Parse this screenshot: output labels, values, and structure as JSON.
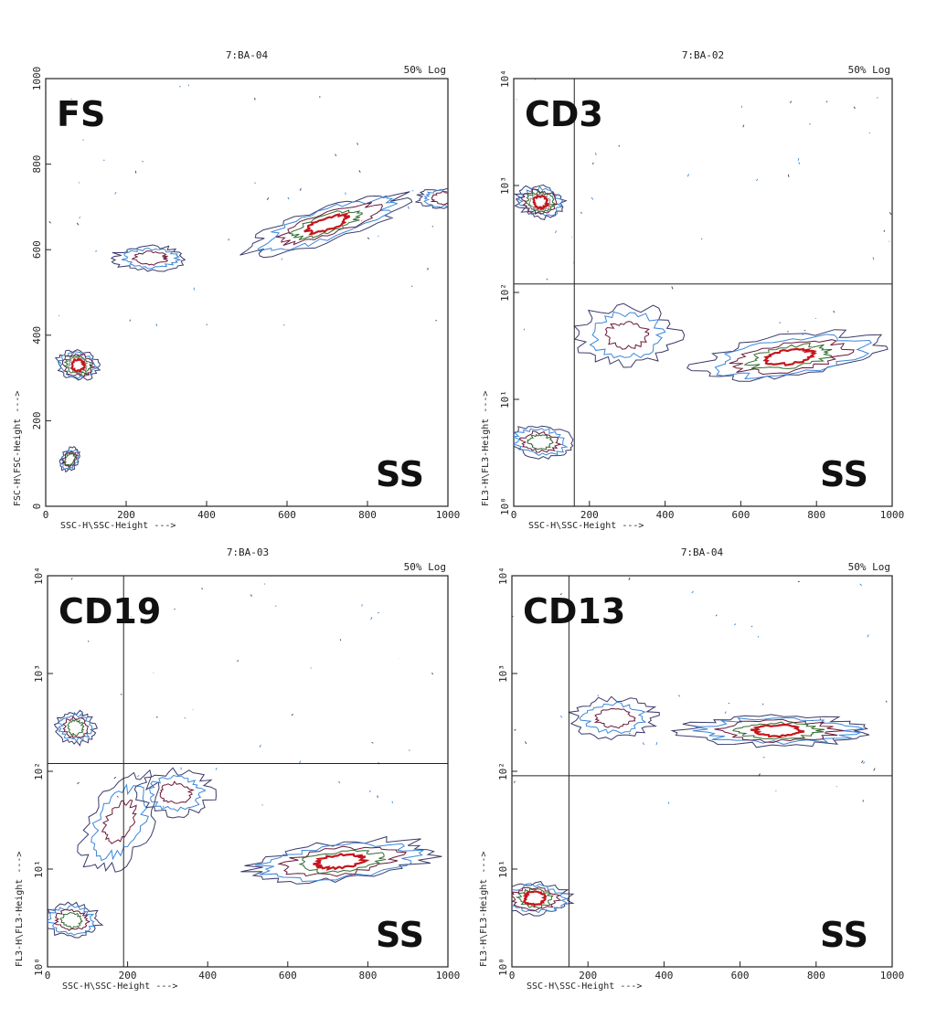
{
  "chart_data": [
    {
      "type": "contour",
      "title": "7:BA-04",
      "scale_note": "50% Log",
      "xlabel": "SSC-H\\SSC-Height --->",
      "ylabel": "FSC-H\\FSC-Height --->",
      "xscale": "linear",
      "yscale": "linear",
      "xlim": [
        0,
        1000
      ],
      "ylim": [
        0,
        1000
      ],
      "xticks": [
        "0",
        "200",
        "400",
        "600",
        "800",
        "1000"
      ],
      "yticks": [
        "0",
        "200",
        "400",
        "600",
        "800",
        "1000"
      ],
      "corner_label": "FS",
      "axis_label": "SS",
      "quadrant": null,
      "populations": [
        {
          "x": 80,
          "y": 330,
          "sx": 25,
          "sy": 75,
          "angle": 80,
          "levels": 5
        },
        {
          "x": 60,
          "y": 110,
          "sx": 20,
          "sy": 25,
          "angle": 60,
          "levels": 3
        },
        {
          "x": 260,
          "y": 580,
          "sx": 80,
          "sy": 40,
          "angle": 0,
          "levels": 2
        },
        {
          "x": 700,
          "y": 660,
          "sx": 190,
          "sy": 60,
          "angle": 18,
          "levels": 4
        },
        {
          "x": 990,
          "y": 720,
          "sx": 15,
          "sy": 100,
          "angle": 90,
          "levels": 2
        }
      ]
    },
    {
      "type": "contour",
      "title": "7:BA-02",
      "scale_note": "50% Log",
      "xlabel": "SSC-H\\SSC-Height --->",
      "ylabel": "FL3-H\\FL3-Height --->",
      "xscale": "linear",
      "yscale": "log",
      "xlim": [
        0,
        1000
      ],
      "ylim": [
        1,
        10000
      ],
      "xticks": [
        "0",
        "200",
        "400",
        "600",
        "800",
        "1000"
      ],
      "yticks": [
        "10⁰",
        "10¹",
        "10²",
        "10³",
        "10⁴"
      ],
      "corner_label": "CD3",
      "axis_label": "SS",
      "quadrant": {
        "x": 160,
        "y": 120
      },
      "populations": [
        {
          "x": 70,
          "y": 700,
          "sx": 30,
          "ly": 0.35,
          "angle": 80,
          "levels": 5
        },
        {
          "x": 70,
          "y": 4,
          "sx": 30,
          "ly": 0.5,
          "angle": 85,
          "levels": 3
        },
        {
          "x": 300,
          "y": 40,
          "sx": 120,
          "ly": 0.45,
          "angle": 0,
          "levels": 2
        },
        {
          "x": 730,
          "y": 25,
          "sx": 230,
          "ly": 0.3,
          "angle": 8,
          "levels": 4
        }
      ]
    },
    {
      "type": "contour",
      "title": "7:BA-03",
      "scale_note": "50% Log",
      "xlabel": "SSC-H\\SSC-Height --->",
      "ylabel": "FL3-H\\FL3-Height --->",
      "xscale": "linear",
      "yscale": "log",
      "xlim": [
        0,
        1000
      ],
      "ylim": [
        1,
        10000
      ],
      "xticks": [
        "0",
        "200",
        "400",
        "600",
        "800",
        "1000"
      ],
      "yticks": [
        "10⁰",
        "10¹",
        "10²",
        "10³",
        "10⁴"
      ],
      "corner_label": "CD19",
      "axis_label": "SS",
      "quadrant": {
        "x": 190,
        "y": 120
      },
      "populations": [
        {
          "x": 70,
          "y": 280,
          "sx": 30,
          "ly": 0.3,
          "angle": 85,
          "levels": 3
        },
        {
          "x": 60,
          "y": 3,
          "sx": 30,
          "ly": 0.45,
          "angle": 88,
          "levels": 3
        },
        {
          "x": 180,
          "y": 30,
          "sx": 120,
          "ly": 0.5,
          "angle": 60,
          "levels": 2
        },
        {
          "x": 320,
          "y": 60,
          "sx": 80,
          "ly": 0.35,
          "angle": 0,
          "levels": 2
        },
        {
          "x": 730,
          "y": 12,
          "sx": 220,
          "ly": 0.3,
          "angle": 6,
          "levels": 4
        }
      ]
    },
    {
      "type": "contour",
      "title": "7:BA-04",
      "scale_note": "50% Log",
      "xlabel": "SSC-H\\SSC-Height --->",
      "ylabel": "FL3-H\\FL3-Height --->",
      "xscale": "linear",
      "yscale": "log",
      "xlim": [
        0,
        1000
      ],
      "ylim": [
        1,
        10000
      ],
      "xticks": [
        "0",
        "200",
        "400",
        "600",
        "800",
        "1000"
      ],
      "yticks": [
        "10⁰",
        "10¹",
        "10²",
        "10³",
        "10⁴"
      ],
      "corner_label": "CD13",
      "axis_label": "SS",
      "quadrant": {
        "x": 150,
        "y": 90
      },
      "populations": [
        {
          "x": 60,
          "y": 5,
          "sx": 30,
          "ly": 0.6,
          "angle": 88,
          "levels": 4
        },
        {
          "x": 270,
          "y": 350,
          "sx": 100,
          "ly": 0.3,
          "angle": 0,
          "levels": 2
        },
        {
          "x": 700,
          "y": 260,
          "sx": 230,
          "ly": 0.22,
          "angle": 0,
          "levels": 4
        }
      ]
    }
  ],
  "colors": {
    "outer": "#3a3a6a",
    "blue": "#3a86d8",
    "maroon": "#6a1a3a",
    "green": "#2e6b2e",
    "grey": "#8a8a8a",
    "red": "#c4161c"
  }
}
